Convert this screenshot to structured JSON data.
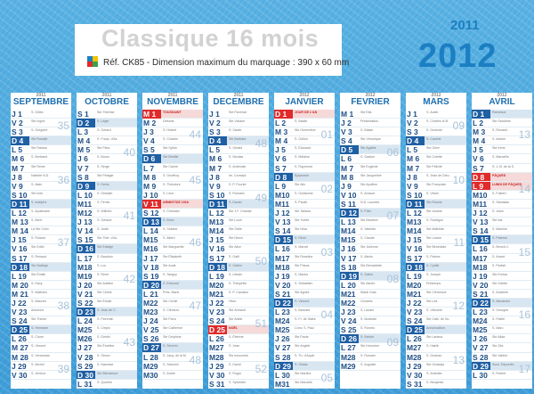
{
  "header": {
    "title": "Classique 16 mois",
    "reference": "Réf. CK85 - Dimension maximum du marquage : 390 x 60 mm",
    "year_small": "2011",
    "year_big": "2012"
  },
  "colors": {
    "background": "#4aa7dd",
    "accent_blue": "#1c7fc3",
    "sunday": "#1f5fa3",
    "holiday": "#e12a2a"
  },
  "icons": [
    "color-squares-icon"
  ],
  "months": [
    {
      "year": "2011",
      "name": "SEPTEMBRE",
      "days": [
        "J 1",
        "V 2",
        "S 3",
        "D 4",
        "L 5",
        "M 6",
        "M 7",
        "J 8",
        "V 9",
        "S 10",
        "D 11",
        "L 12",
        "M 13",
        "M 14",
        "J 15",
        "V 16",
        "S 17",
        "D 18",
        "L 19",
        "M 20",
        "M 21",
        "J 22",
        "V 23",
        "S 24",
        "D 25",
        "L 26",
        "M 27",
        "M 28",
        "J 29",
        "V 30"
      ],
      "saints": [
        "S. Gilles",
        "Ste Ingrid",
        "S. Grégoire",
        "Ste Rosalie",
        "Ste Raïssa",
        "S. Bertrand",
        "Ste Reine",
        "Nativité N.D.",
        "S. Alain",
        "Ste Inès",
        "S. Adelphe",
        "S. Apollinaire",
        "S. Aimé",
        "La Ste Croix",
        "S. Roland",
        "Ste Edith",
        "S. Renaud",
        "Ste Nadège",
        "Ste Émilie",
        "S. Davy",
        "S. Matthieu",
        "S. Maurice",
        "Automne",
        "Ste Thècle",
        "S. Hermann",
        "S. Côme",
        "S. Vincent",
        "S. Venceslas",
        "S. Michel",
        "S. Jérôme"
      ],
      "weeks": [
        {
          "n": "35"
        },
        {
          "n": "36"
        },
        {
          "n": "37"
        },
        {
          "n": "38"
        },
        {
          "n": "39"
        }
      ],
      "holidays": []
    },
    {
      "year": "2011",
      "name": "OCTOBRE",
      "days": [
        "S 1",
        "D 2",
        "L 3",
        "M 4",
        "M 5",
        "J 6",
        "V 7",
        "S 8",
        "D 9",
        "L 10",
        "M11",
        "M12",
        "J 13",
        "V 14",
        "S 15",
        "D 16",
        "L 17",
        "M18",
        "M19",
        "J 20",
        "V 21",
        "S 22",
        "D 23",
        "L 24",
        "M25",
        "M26",
        "J 27",
        "V 28",
        "S 29",
        "D 30",
        "L 31"
      ],
      "saints": [
        "Ste Thérèse",
        "S. Léger",
        "S. Gérard",
        "S. Franç. d'As.",
        "Ste Fleur",
        "S. Bruno",
        "S. Serge",
        "Ste Pélagie",
        "S. Denis",
        "S. Ghislain",
        "S. Firmin",
        "S. Wilfried",
        "S. Géraud",
        "S. Juste",
        "Ste Thér. d'Av.",
        "Ste Edwige",
        "S. Baudoin",
        "S. Luc",
        "S. René",
        "Ste Adeline",
        "Ste Céline",
        "Ste Élodie",
        "S. Jean de C.",
        "S. Florentin",
        "S. Crépin",
        "S. Dimitri",
        "Ste Émeline",
        "S. Simon",
        "S. Narcisse",
        "Ste Bienvenue",
        "S. Quentin"
      ],
      "weeks": [
        {
          "n": "40"
        },
        {
          "n": "41"
        },
        {
          "n": "42"
        },
        {
          "n": "43"
        }
      ],
      "holidays": []
    },
    {
      "year": "2011",
      "name": "NOVEMBRE",
      "days": [
        "M 1",
        "M 2",
        "J 3",
        "V 4",
        "S 5",
        "D 6",
        "L 7",
        "M 8",
        "M 9",
        "J 10",
        "V 11",
        "S 12",
        "D 13",
        "L 14",
        "M15",
        "M16",
        "J 17",
        "V 18",
        "S 19",
        "D 20",
        "L 21",
        "M22",
        "M23",
        "J 24",
        "V 25",
        "S 26",
        "D 27",
        "L 28",
        "M29",
        "M30"
      ],
      "saints": [
        "TOUSSAINT",
        "Défunts",
        "S. Hubert",
        "S. Charles",
        "Ste Sylvie",
        "Ste Bertille",
        "Ste Carine",
        "S. Geoffroy",
        "S. Théodore",
        "S. Léon",
        "ARMISTICE 1918",
        "S. Christian",
        "S. Brice",
        "S. Sidoine",
        "S. Albert",
        "Ste Marguerite",
        "Ste Élisabeth",
        "Ste Aude",
        "S. Tanguy",
        "S. Edmond",
        "Prés. Marie",
        "Ste Cécile",
        "S. Clément",
        "Ste Flora",
        "Ste Catherine",
        "Ste Delphine",
        "S. Séverin",
        "S. Jacq. de la M.",
        "S. Saturnin",
        "S. André"
      ],
      "weeks": [
        {
          "n": "44"
        },
        {
          "n": "45"
        },
        {
          "n": "46"
        },
        {
          "n": "47"
        },
        {
          "n": "48"
        }
      ],
      "holidays": [
        0,
        10
      ]
    },
    {
      "year": "2011",
      "name": "DECEMBRE",
      "days": [
        "J 1",
        "V 2",
        "S 3",
        "D 4",
        "L 5",
        "M 6",
        "M 7",
        "J 8",
        "V 9",
        "S 10",
        "D 11",
        "L 12",
        "M13",
        "M14",
        "J 15",
        "V 16",
        "S 17",
        "D 18",
        "L 19",
        "M20",
        "M21",
        "J 22",
        "V 23",
        "S 24",
        "D 25",
        "L 26",
        "M27",
        "M28",
        "J 29",
        "V 30",
        "S 31"
      ],
      "saints": [
        "Ste Florence",
        "Ste Viviane",
        "S. Xavier",
        "Ste Barbara",
        "S. Gérald",
        "S. Nicolas",
        "S. Ambroise",
        "Im. Concept.",
        "S. P. Fourier",
        "S. Romaric",
        "S. Daniel",
        "Ste J.F. Chantal",
        "Ste Lucie",
        "Ste Odile",
        "Ste Ninon",
        "Ste Alice",
        "S. Gaël",
        "S. Gatien",
        "S. Urbain",
        "S. Théophile",
        "S. P. Canisius",
        "Hiver",
        "Ste Armand",
        "Ste Adèle",
        "NOËL",
        "S. Étienne",
        "S. Jean",
        "Sts Innocents",
        "S. David",
        "S. Roger",
        "S. Sylvestre"
      ],
      "weeks": [
        {
          "n": "48"
        },
        {
          "n": "49"
        },
        {
          "n": "50"
        },
        {
          "n": "51"
        },
        {
          "n": "52"
        }
      ],
      "holidays": [
        24
      ]
    },
    {
      "year": "2012",
      "name": "JANVIER",
      "days": [
        "D 1",
        "L 2",
        "M 3",
        "M 4",
        "J 5",
        "V 6",
        "S 7",
        "D 8",
        "L 9",
        "M10",
        "M11",
        "J 12",
        "V 13",
        "S 14",
        "D 15",
        "L 16",
        "M17",
        "M18",
        "J 19",
        "V 20",
        "S 21",
        "D 22",
        "L 23",
        "M24",
        "M25",
        "J 26",
        "V 27",
        "S 28",
        "D 29",
        "L 30",
        "M31"
      ],
      "saints": [
        "JOUR DE L'AN",
        "S. Basile",
        "Ste Geneviève",
        "S. Odilon",
        "S. Édouard",
        "S. Mélaine",
        "S. Raymond",
        "Épiphanie",
        "Ste Alix",
        "S. Guillaume",
        "S. Paulin",
        "Ste Tatiana",
        "Ste Yvette",
        "Ste Nina",
        "S. Rémi",
        "S. Marcel",
        "Ste Roseline",
        "Ste Prisca",
        "S. Marius",
        "S. Sébastien",
        "Ste Agnès",
        "S. Vincent",
        "S. Barnard",
        "S. Fr. de Sales",
        "Conv. S. Paul",
        "Ste Paule",
        "Ste Angèle",
        "S. Th. d'Aquin",
        "S. Gildas",
        "Ste Martine",
        "Ste Marcelle"
      ],
      "weeks": [
        {
          "n": "01"
        },
        {
          "n": "02"
        },
        {
          "n": "03"
        },
        {
          "n": "04"
        },
        {
          "n": "05"
        }
      ],
      "holidays": [
        0
      ]
    },
    {
      "year": "2012",
      "name": "FEVRIER",
      "days": [
        "M 1",
        "J 2",
        "V 3",
        "S 4",
        "D 5",
        "L 6",
        "M 7",
        "M 8",
        "J 9",
        "V 10",
        "S 11",
        "D 12",
        "L 13",
        "M14",
        "M15",
        "J 16",
        "V 17",
        "S 18",
        "D 19",
        "L 20",
        "M21",
        "M22",
        "J 23",
        "V 24",
        "S 25",
        "D 26",
        "L 27",
        "M28",
        "M29"
      ],
      "saints": [
        "Ste Ella",
        "Présentation",
        "S. Blaise",
        "Ste Véronique",
        "Ste Agathe",
        "S. Gaston",
        "Ste Eugénie",
        "Ste Jacqueline",
        "Ste Apolline",
        "S. Arnaud",
        "N.D. Lourdes",
        "S. Félix",
        "Ste Béatrice",
        "S. Valentin",
        "S. Claude",
        "Ste Julienne",
        "S. Alexis",
        "Ste Bernadette",
        "S. Gabin",
        "Ste Aimée",
        "Mardi Gras",
        "Cendres",
        "S. Lazare",
        "S. Modeste",
        "S. Roméo",
        "S. Nestor",
        "Ste Honorine",
        "S. Romain",
        "S. Auguste"
      ],
      "weeks": [
        {
          "n": "06"
        },
        {
          "n": "07"
        },
        {
          "n": "08"
        },
        {
          "n": "09"
        }
      ],
      "holidays": []
    },
    {
      "year": "2012",
      "name": "MARS",
      "days": [
        "J 1",
        "V 2",
        "S 3",
        "D 4",
        "L 5",
        "M 6",
        "M 7",
        "J 8",
        "V 9",
        "S 10",
        "D 11",
        "L 12",
        "M13",
        "M14",
        "J 15",
        "V 16",
        "S 17",
        "D 18",
        "L 19",
        "M20",
        "M21",
        "J 22",
        "V 23",
        "S 24",
        "D 25",
        "L 26",
        "M27",
        "M28",
        "J 29",
        "V 30",
        "S 31"
      ],
      "saints": [
        "S. Aubin",
        "S. Charles le B.",
        "S. Guénolé",
        "S. Casimir",
        "Ste Olive",
        "Ste Colette",
        "Ste Félicité",
        "S. Jean de Dieu",
        "Ste Françoise",
        "S. Vivien",
        "Ste Rosine",
        "Ste Justine",
        "S. Rodrigue",
        "Ste Mathilde",
        "Ste Louise",
        "Ste Bénédicte",
        "S. Patrice",
        "S. Cyrille",
        "S. Joseph",
        "Printemps",
        "Ste Clémence",
        "Ste Léa",
        "S. Victorien",
        "Ste Cath. de Su.",
        "Annonciation",
        "Ste Larissa",
        "S. Habib",
        "S. Gontran",
        "Ste Gwladys",
        "S. Amédée",
        "S. Benjamin"
      ],
      "weeks": [
        {
          "n": "09"
        },
        {
          "n": "10"
        },
        {
          "n": "11"
        },
        {
          "n": "12"
        },
        {
          "n": "13"
        }
      ],
      "holidays": []
    },
    {
      "year": "2012",
      "name": "AVRIL",
      "days": [
        "D 1",
        "L 2",
        "M 3",
        "M 4",
        "J 5",
        "V 6",
        "S 7",
        "D 8",
        "L 9",
        "M10",
        "M11",
        "J 12",
        "V 13",
        "S 14",
        "D 15",
        "L 16",
        "M17",
        "M18",
        "J 19",
        "V 20",
        "S 21",
        "D 22",
        "L 23",
        "M24",
        "M25",
        "J 26",
        "V 27",
        "S 28",
        "D 29",
        "L 30"
      ],
      "saints": [
        "Rameaux",
        "Ste Sandrine",
        "S. Richard",
        "S. Isidore",
        "Ste Irène",
        "S. Marcellin",
        "S. J.-B. de la S.",
        "PÂQUES",
        "LUNDI DE PÂQUES",
        "S. Fulbert",
        "S. Stanislas",
        "S. Jules",
        "Ste Ida",
        "S. Maxime",
        "S. Paterne",
        "S. Benoît-J.",
        "S. Anicet",
        "S. Parfait",
        "Ste Emma",
        "Ste Odette",
        "S. Anselme",
        "S. Alexandre",
        "S. Georges",
        "S. Fidèle",
        "S. Marc",
        "Ste Alida",
        "Ste Zita",
        "Ste Valérie",
        "Souv. Déportés",
        "S. Robert"
      ],
      "weeks": [
        {
          "n": "13"
        },
        {
          "n": "14"
        },
        {
          "n": "15"
        },
        {
          "n": "16"
        },
        {
          "n": "17"
        }
      ],
      "holidays": [
        7,
        8
      ]
    }
  ]
}
